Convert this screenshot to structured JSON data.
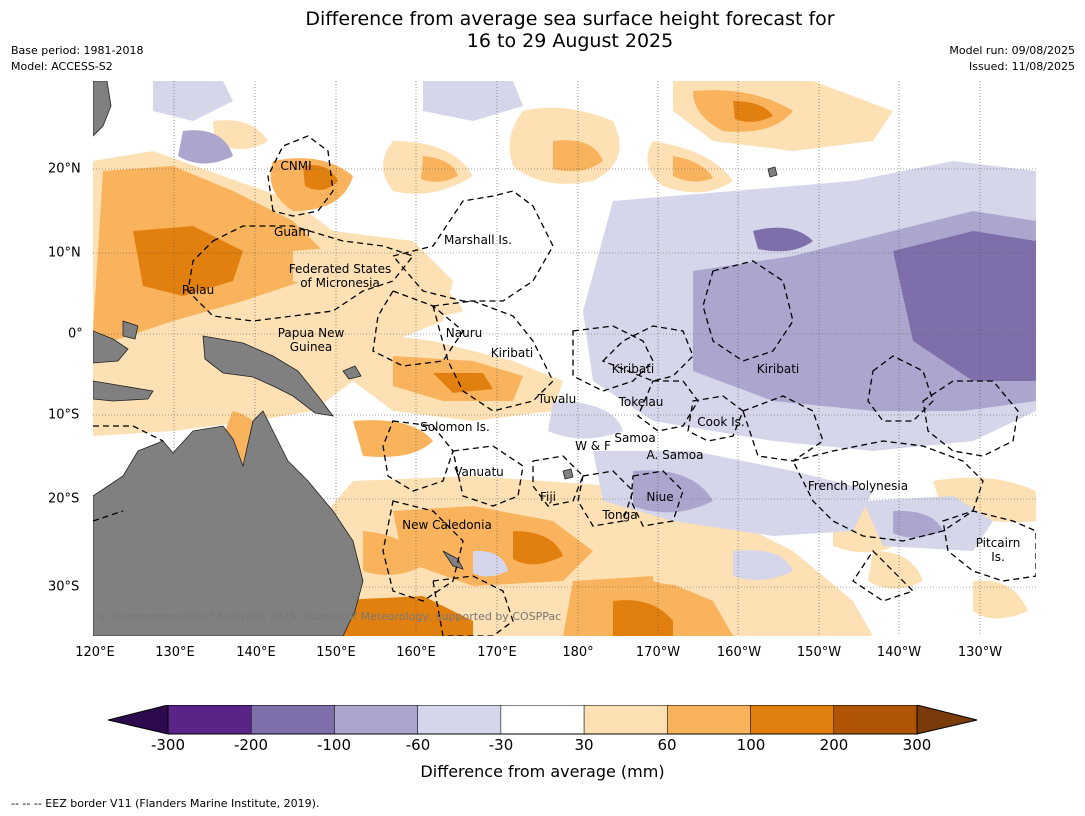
{
  "title_line1": "Difference from average sea surface height forecast for",
  "title_line2": "16 to 29 August 2025",
  "base_period": "Base period: 1981-2018",
  "model": "Model: ACCESS-S2",
  "model_run": "Model run: 09/08/2025",
  "issued": "Issued: 11/08/2025",
  "lon_ticks": [
    "120°E",
    "130°E",
    "140°E",
    "150°E",
    "160°E",
    "170°E",
    "180°",
    "170°W",
    "160°W",
    "150°W",
    "140°W",
    "130°W"
  ],
  "lat_ticks": [
    "20°N",
    "10°N",
    "0°",
    "10°S",
    "20°S",
    "30°S"
  ],
  "regions": [
    {
      "id": "cnmi",
      "name": "CNMI"
    },
    {
      "id": "guam",
      "name": "Guam"
    },
    {
      "id": "marshall",
      "name": "Marshall Is."
    },
    {
      "id": "fsm1",
      "name": "Federated States"
    },
    {
      "id": "fsm2",
      "name": "of Micronesia"
    },
    {
      "id": "palau",
      "name": "Palau"
    },
    {
      "id": "png1",
      "name": "Papua New"
    },
    {
      "id": "png2",
      "name": "Guinea"
    },
    {
      "id": "nauru",
      "name": "Nauru"
    },
    {
      "id": "kiribati-w",
      "name": "Kiribati"
    },
    {
      "id": "kiribati-c",
      "name": "Kiribati"
    },
    {
      "id": "kiribati-e",
      "name": "Kiribati"
    },
    {
      "id": "tuvalu",
      "name": "Tuvalu"
    },
    {
      "id": "tokelau",
      "name": "Tokelau"
    },
    {
      "id": "solomon",
      "name": "Solomon Is."
    },
    {
      "id": "cook",
      "name": "Cook Is."
    },
    {
      "id": "samoa",
      "name": "Samoa"
    },
    {
      "id": "wf",
      "name": "W & F"
    },
    {
      "id": "asamoa",
      "name": "A. Samoa"
    },
    {
      "id": "vanuatu",
      "name": "Vanuatu"
    },
    {
      "id": "fiji",
      "name": "Fiji"
    },
    {
      "id": "niue",
      "name": "Niue"
    },
    {
      "id": "tonga",
      "name": "Tonga"
    },
    {
      "id": "frpoly",
      "name": "French Polynesia"
    },
    {
      "id": "newcal",
      "name": "New Caledonia"
    },
    {
      "id": "pitcairn1",
      "name": "Pitcairn"
    },
    {
      "id": "pitcairn2",
      "name": "Is."
    }
  ],
  "copyright": "© Commonwealth of Australia 2025, Bureau of Meteorology, supported by COSPPac",
  "colorbar": {
    "label": "Difference from average (mm)",
    "ticks": [
      "-300",
      "-200",
      "-100",
      "-60",
      "-30",
      "30",
      "60",
      "100",
      "200",
      "300"
    ],
    "colors": {
      "under": "#2d0a4e",
      "bins": [
        "#5a2388",
        "#7e6fab",
        "#aca6cf",
        "#d6d6ea",
        "#ffffff",
        "#fde0b4",
        "#f9b35d",
        "#e2800f",
        "#b05405"
      ],
      "over": "#7a3a0a"
    }
  },
  "land_color": "#808080",
  "footnote": "--  --  -- EEZ border V11 (Flanders Marine Institute, 2019)."
}
